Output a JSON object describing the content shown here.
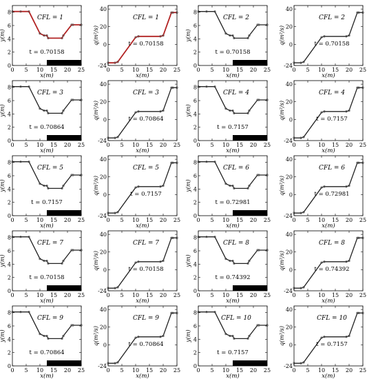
{
  "panel_labels": {
    "h": {
      "xlabel": "x(m)",
      "ylabel": "y(m)"
    },
    "q": {
      "xlabel": "x(m)",
      "ylabel": "q(m²/s)"
    }
  },
  "colors": {
    "first_row_line": "#b22222",
    "line": "#222222",
    "marker": "#555555",
    "bar": "#000000",
    "axis": "#000000"
  },
  "chart_data": [
    {
      "type": "line",
      "variable": "h",
      "cfl_label": "CFL = 1",
      "time_label": "t = 0.70158",
      "xlim": [
        0,
        25
      ],
      "ylim": [
        0,
        9
      ],
      "xticks": [
        "0",
        "5",
        "10",
        "15",
        "20",
        "25"
      ],
      "yticks": [
        "0",
        "2",
        "4",
        "6",
        "8"
      ],
      "x": [
        0,
        3,
        6,
        10,
        11.5,
        12.5,
        13,
        18,
        18.5,
        21.5,
        22,
        25
      ],
      "y": [
        8.1,
        8.1,
        8.1,
        4.8,
        4.5,
        4.5,
        4.1,
        4.1,
        4.5,
        6.1,
        6.1,
        6.1
      ],
      "bar": [
        12.5,
        25
      ]
    },
    {
      "type": "line",
      "variable": "q",
      "cfl_label": "CFL = 1",
      "time_label": "t = 0.70158",
      "xlim": [
        0,
        25
      ],
      "ylim": [
        -24,
        44
      ],
      "xticks": [
        "0",
        "5",
        "10",
        "15",
        "20",
        "25"
      ],
      "yticks": [
        "-24",
        "0",
        "20",
        "40"
      ],
      "x": [
        0,
        2.5,
        3.5,
        10,
        11,
        19,
        20,
        23,
        23.5,
        25
      ],
      "y": [
        -21,
        -21,
        -20,
        8,
        9,
        9,
        10,
        36,
        36,
        36
      ]
    },
    {
      "type": "line",
      "variable": "h",
      "cfl_label": "CFL = 2",
      "time_label": "t = 0.70158",
      "xlim": [
        0,
        25
      ],
      "ylim": [
        0,
        9
      ],
      "xticks": [
        "0",
        "5",
        "10",
        "15",
        "20",
        "25"
      ],
      "yticks": [
        "0",
        "2",
        "4",
        "6",
        "8"
      ],
      "x": [
        0,
        3,
        6,
        10,
        11.5,
        12.5,
        13,
        18,
        18.5,
        21.5,
        22,
        25
      ],
      "y": [
        8.1,
        8.1,
        8.1,
        4.8,
        4.5,
        4.5,
        4.1,
        4.1,
        4.5,
        6.1,
        6.1,
        6.1
      ],
      "bar": [
        12.5,
        25
      ]
    },
    {
      "type": "line",
      "variable": "q",
      "cfl_label": "CFL = 2",
      "time_label": "t = 0.70158",
      "xlim": [
        0,
        25
      ],
      "ylim": [
        -24,
        44
      ],
      "xticks": [
        "0",
        "5",
        "10",
        "15",
        "20",
        "25"
      ],
      "yticks": [
        "-24",
        "0",
        "20",
        "40"
      ],
      "x": [
        0,
        2.5,
        3.5,
        10,
        11,
        19,
        20,
        23,
        23.5,
        25
      ],
      "y": [
        -21,
        -21,
        -20,
        8,
        9,
        9,
        10,
        36,
        36,
        36
      ]
    },
    {
      "type": "line",
      "variable": "h",
      "cfl_label": "CFL = 3",
      "time_label": "t = 0.70864",
      "xlim": [
        0,
        25
      ],
      "ylim": [
        0,
        9
      ],
      "xticks": [
        "0",
        "5",
        "10",
        "15",
        "20",
        "25"
      ],
      "yticks": [
        "0",
        "2",
        "4",
        "6",
        "8"
      ],
      "x": [
        0,
        3,
        6,
        10,
        11.5,
        12.5,
        13,
        18,
        18.5,
        21.5,
        22,
        25
      ],
      "y": [
        8.1,
        8.1,
        8.1,
        4.8,
        4.5,
        4.5,
        4.1,
        4.1,
        4.5,
        6.1,
        6.1,
        6.1
      ],
      "bar": [
        12.5,
        25
      ]
    },
    {
      "type": "line",
      "variable": "q",
      "cfl_label": "CFL = 3",
      "time_label": "t = 0.70864",
      "xlim": [
        0,
        25
      ],
      "ylim": [
        -24,
        44
      ],
      "xticks": [
        "0",
        "5",
        "10",
        "15",
        "20",
        "25"
      ],
      "yticks": [
        "-24",
        "0",
        "20",
        "40"
      ],
      "x": [
        0,
        2.5,
        3.5,
        10,
        11,
        19,
        20,
        23,
        23.5,
        25
      ],
      "y": [
        -21,
        -21,
        -20,
        8,
        9,
        9,
        10,
        36,
        36,
        36
      ]
    },
    {
      "type": "line",
      "variable": "h",
      "cfl_label": "CFL = 4",
      "time_label": "t = 0.7157",
      "xlim": [
        0,
        25
      ],
      "ylim": [
        0,
        9
      ],
      "xticks": [
        "0",
        "5",
        "10",
        "15",
        "20",
        "25"
      ],
      "yticks": [
        "0",
        "2",
        "4",
        "6",
        "8"
      ],
      "x": [
        0,
        3,
        6,
        10,
        11.5,
        12.5,
        13,
        18,
        18.5,
        21.5,
        22,
        25
      ],
      "y": [
        8.1,
        8.1,
        8.1,
        4.8,
        4.5,
        4.5,
        4.1,
        4.1,
        4.5,
        6.1,
        6.1,
        6.1
      ],
      "bar": [
        12.5,
        25
      ]
    },
    {
      "type": "line",
      "variable": "q",
      "cfl_label": "CFL = 4",
      "time_label": "t = 0.7157",
      "xlim": [
        0,
        25
      ],
      "ylim": [
        -24,
        44
      ],
      "xticks": [
        "0",
        "5",
        "10",
        "15",
        "20",
        "25"
      ],
      "yticks": [
        "-24",
        "0",
        "20",
        "40"
      ],
      "x": [
        0,
        2.5,
        3.5,
        10,
        11,
        19,
        20,
        23,
        23.5,
        25
      ],
      "y": [
        -21,
        -21,
        -20,
        8,
        9,
        9,
        10,
        36,
        36,
        36
      ]
    },
    {
      "type": "line",
      "variable": "h",
      "cfl_label": "CFL = 5",
      "time_label": "t = 0.7157",
      "xlim": [
        0,
        25
      ],
      "ylim": [
        0,
        9
      ],
      "xticks": [
        "0",
        "5",
        "10",
        "15",
        "20",
        "25"
      ],
      "yticks": [
        "0",
        "2",
        "4",
        "6",
        "8"
      ],
      "x": [
        0,
        3,
        6,
        10,
        11.5,
        12.5,
        13,
        18,
        18.5,
        21.5,
        22,
        25
      ],
      "y": [
        8.1,
        8.1,
        8.1,
        4.8,
        4.5,
        4.5,
        4.1,
        4.1,
        4.5,
        6.1,
        6.1,
        6.1
      ],
      "bar": [
        12.5,
        25
      ]
    },
    {
      "type": "line",
      "variable": "q",
      "cfl_label": "CFL = 5",
      "time_label": "t = 0.7157",
      "xlim": [
        0,
        25
      ],
      "ylim": [
        -24,
        44
      ],
      "xticks": [
        "0",
        "5",
        "10",
        "15",
        "20",
        "25"
      ],
      "yticks": [
        "-24",
        "0",
        "20",
        "40"
      ],
      "x": [
        0,
        2.5,
        3.5,
        10,
        11,
        19,
        20,
        23,
        23.5,
        25
      ],
      "y": [
        -21,
        -21,
        -20,
        8,
        9,
        9,
        10,
        36,
        36,
        36
      ]
    },
    {
      "type": "line",
      "variable": "h",
      "cfl_label": "CFL = 6",
      "time_label": "t = 0.72981",
      "xlim": [
        0,
        25
      ],
      "ylim": [
        0,
        9
      ],
      "xticks": [
        "0",
        "5",
        "10",
        "15",
        "20",
        "25"
      ],
      "yticks": [
        "0",
        "2",
        "4",
        "6",
        "8"
      ],
      "x": [
        0,
        3,
        6,
        10,
        11.5,
        12.5,
        13,
        18,
        18.5,
        21.5,
        22,
        25
      ],
      "y": [
        8.1,
        8.1,
        8.1,
        4.8,
        4.5,
        4.5,
        4.1,
        4.1,
        4.5,
        6.1,
        6.1,
        6.1
      ],
      "bar": [
        12.5,
        25
      ]
    },
    {
      "type": "line",
      "variable": "q",
      "cfl_label": "CFL = 6",
      "time_label": "t = 0.72981",
      "xlim": [
        0,
        25
      ],
      "ylim": [
        -24,
        44
      ],
      "xticks": [
        "0",
        "5",
        "10",
        "15",
        "20",
        "25"
      ],
      "yticks": [
        "-24",
        "0",
        "20",
        "40"
      ],
      "x": [
        0,
        2.5,
        3.5,
        10,
        11,
        19,
        20,
        23,
        23.5,
        25
      ],
      "y": [
        -21,
        -21,
        -20,
        8,
        9,
        9,
        10,
        36,
        36,
        36
      ]
    },
    {
      "type": "line",
      "variable": "h",
      "cfl_label": "CFL = 7",
      "time_label": "t = 0.70158",
      "xlim": [
        0,
        25
      ],
      "ylim": [
        0,
        9
      ],
      "xticks": [
        "0",
        "5",
        "10",
        "15",
        "20",
        "25"
      ],
      "yticks": [
        "0",
        "2",
        "4",
        "6",
        "8"
      ],
      "x": [
        0,
        3,
        6,
        10,
        11.5,
        12.5,
        13,
        18,
        18.5,
        21.5,
        22,
        25
      ],
      "y": [
        8.1,
        8.1,
        8.1,
        4.8,
        4.5,
        4.5,
        4.1,
        4.1,
        4.5,
        6.1,
        6.1,
        6.1
      ],
      "bar": [
        12.5,
        25
      ]
    },
    {
      "type": "line",
      "variable": "q",
      "cfl_label": "CFL = 7",
      "time_label": "t = 0.70158",
      "xlim": [
        0,
        25
      ],
      "ylim": [
        -24,
        44
      ],
      "xticks": [
        "0",
        "5",
        "10",
        "15",
        "20",
        "25"
      ],
      "yticks": [
        "-24",
        "0",
        "20",
        "40"
      ],
      "x": [
        0,
        2.5,
        3.5,
        10,
        11,
        19,
        20,
        23,
        23.5,
        25
      ],
      "y": [
        -21,
        -21,
        -20,
        8,
        9,
        9,
        10,
        36,
        36,
        36
      ]
    },
    {
      "type": "line",
      "variable": "h",
      "cfl_label": "CFL = 8",
      "time_label": "t = 0.74392",
      "xlim": [
        0,
        25
      ],
      "ylim": [
        0,
        9
      ],
      "xticks": [
        "0",
        "5",
        "10",
        "15",
        "20",
        "25"
      ],
      "yticks": [
        "0",
        "2",
        "4",
        "6",
        "8"
      ],
      "x": [
        0,
        3,
        6,
        10,
        11.5,
        12.5,
        13,
        18,
        18.5,
        21.5,
        22,
        25
      ],
      "y": [
        8.1,
        8.1,
        8.1,
        4.8,
        4.5,
        4.5,
        4.1,
        4.1,
        4.5,
        6.1,
        6.1,
        6.1
      ],
      "bar": [
        12.5,
        25
      ]
    },
    {
      "type": "line",
      "variable": "q",
      "cfl_label": "CFL = 8",
      "time_label": "t = 0.74392",
      "xlim": [
        0,
        25
      ],
      "ylim": [
        -24,
        44
      ],
      "xticks": [
        "0",
        "5",
        "10",
        "15",
        "20",
        "25"
      ],
      "yticks": [
        "-24",
        "0",
        "20",
        "40"
      ],
      "x": [
        0,
        2.5,
        3.5,
        10,
        11,
        19,
        20,
        23,
        23.5,
        25
      ],
      "y": [
        -21,
        -21,
        -20,
        8,
        9,
        9,
        10,
        36,
        36,
        36
      ]
    },
    {
      "type": "line",
      "variable": "h",
      "cfl_label": "CFL = 9",
      "time_label": "t = 0.70864",
      "xlim": [
        0,
        25
      ],
      "ylim": [
        0,
        9
      ],
      "xticks": [
        "0",
        "5",
        "10",
        "15",
        "20",
        "25"
      ],
      "yticks": [
        "0",
        "2",
        "4",
        "6",
        "8"
      ],
      "x": [
        0,
        3,
        6,
        10,
        11.5,
        12.5,
        13,
        18,
        18.5,
        21.5,
        22,
        25
      ],
      "y": [
        8.1,
        8.1,
        8.1,
        4.8,
        4.5,
        4.5,
        4.1,
        4.1,
        4.5,
        6.1,
        6.1,
        6.1
      ],
      "bar": [
        12.5,
        25
      ]
    },
    {
      "type": "line",
      "variable": "q",
      "cfl_label": "CFL = 9",
      "time_label": "t = 0.70864",
      "xlim": [
        0,
        25
      ],
      "ylim": [
        -24,
        44
      ],
      "xticks": [
        "0",
        "5",
        "10",
        "15",
        "20",
        "25"
      ],
      "yticks": [
        "-24",
        "0",
        "20",
        "40"
      ],
      "x": [
        0,
        2.5,
        3.5,
        10,
        11,
        19,
        20,
        23,
        23.5,
        25
      ],
      "y": [
        -21,
        -21,
        -20,
        8,
        9,
        9,
        10,
        36,
        36,
        36
      ]
    },
    {
      "type": "line",
      "variable": "h",
      "cfl_label": "CFL = 10",
      "time_label": "t = 0.7157",
      "xlim": [
        0,
        25
      ],
      "ylim": [
        0,
        9
      ],
      "xticks": [
        "0",
        "5",
        "10",
        "15",
        "20",
        "25"
      ],
      "yticks": [
        "0",
        "2",
        "4",
        "6",
        "8"
      ],
      "x": [
        0,
        3,
        6,
        10,
        11.5,
        12.5,
        13,
        18,
        18.5,
        21.5,
        22,
        25
      ],
      "y": [
        8.1,
        8.1,
        8.1,
        4.8,
        4.5,
        4.5,
        4.1,
        4.1,
        4.5,
        6.1,
        6.1,
        6.1
      ],
      "bar": [
        12.5,
        25
      ]
    },
    {
      "type": "line",
      "variable": "q",
      "cfl_label": "CFL = 10",
      "time_label": "t = 0.7157",
      "xlim": [
        0,
        25
      ],
      "ylim": [
        -24,
        44
      ],
      "xticks": [
        "0",
        "5",
        "10",
        "15",
        "20",
        "25"
      ],
      "yticks": [
        "-24",
        "0",
        "20",
        "40"
      ],
      "x": [
        0,
        2.5,
        3.5,
        10,
        11,
        19,
        20,
        23,
        23.5,
        25
      ],
      "y": [
        -21,
        -21,
        -20,
        8,
        9,
        9,
        10,
        36,
        36,
        36
      ]
    }
  ]
}
